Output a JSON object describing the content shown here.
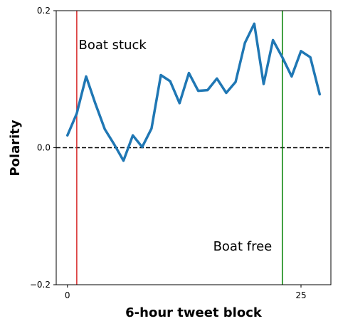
{
  "chart_data": {
    "type": "line",
    "xlabel": "6-hour tweet block",
    "ylabel": "Polarity",
    "xlim": [
      -1.2,
      28.2
    ],
    "ylim": [
      -0.2,
      0.2
    ],
    "x_ticks": [
      0,
      25
    ],
    "x_tick_labels": [
      "0",
      "25"
    ],
    "y_ticks": [
      -0.2,
      0.0,
      0.2
    ],
    "y_tick_labels": [
      "−0.2",
      "0.0",
      "0.2"
    ],
    "grid": false,
    "series": [
      {
        "color": "#1f77b4",
        "x": [
          0,
          1,
          2,
          3,
          4,
          5,
          6,
          7,
          8,
          9,
          10,
          11,
          12,
          13,
          14,
          15,
          16,
          17,
          18,
          19,
          20,
          21,
          22,
          23,
          24,
          25,
          26,
          27
        ],
        "y": [
          0.018,
          0.05,
          0.104,
          0.064,
          0.027,
          0.005,
          -0.019,
          0.018,
          0.001,
          0.028,
          0.106,
          0.097,
          0.065,
          0.109,
          0.083,
          0.084,
          0.101,
          0.08,
          0.096,
          0.153,
          0.181,
          0.093,
          0.157,
          0.132,
          0.104,
          0.141,
          0.132,
          0.078
        ]
      }
    ],
    "reference_lines": [
      {
        "orientation": "horizontal",
        "value": 0.0,
        "color": "#000000",
        "style": "dashed"
      },
      {
        "orientation": "vertical",
        "value": 1.0,
        "color": "#d62728",
        "style": "solid"
      },
      {
        "orientation": "vertical",
        "value": 23.0,
        "color": "#008000",
        "style": "solid"
      }
    ],
    "annotations": [
      {
        "text": "Boat stuck",
        "x": 1.2,
        "y": 0.15
      },
      {
        "text": "Boat free",
        "x": 15.6,
        "y": -0.144
      }
    ]
  }
}
